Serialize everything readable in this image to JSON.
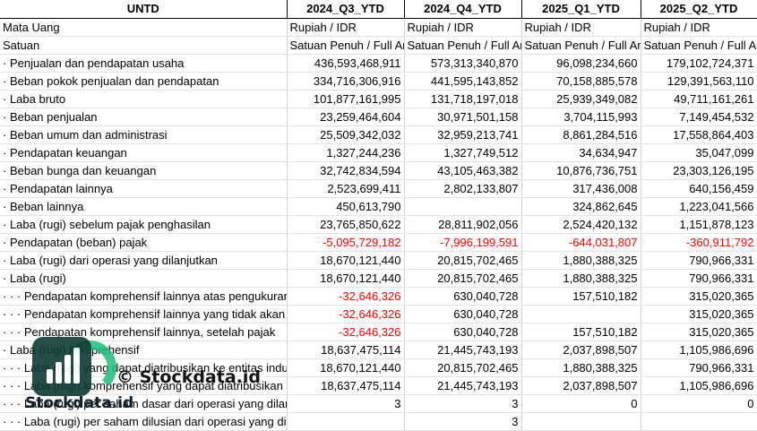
{
  "header": [
    "UNTD",
    "2024_Q3_YTD",
    "2024_Q4_YTD",
    "2025_Q1_YTD",
    "2025_Q2_YTD"
  ],
  "rows": [
    {
      "label": "Mata Uang",
      "cells": [
        "Rupiah / IDR",
        "Rupiah / IDR",
        "Rupiah / IDR",
        "Rupiah / IDR"
      ],
      "kind": "text"
    },
    {
      "label": "Satuan",
      "cells": [
        "Satuan Penuh / Full Amount",
        "Satuan Penuh / Full Amount",
        "Satuan Penuh / Full Amount",
        "Satuan Penuh / Full Amount"
      ],
      "kind": "text"
    },
    {
      "label": "· Penjualan dan pendapatan usaha",
      "cells": [
        "436,593,468,911",
        "573,313,340,870",
        "96,098,234,660",
        "179,102,724,371"
      ]
    },
    {
      "label": "· Beban pokok penjualan dan pendapatan",
      "cells": [
        "334,716,306,916",
        "441,595,143,852",
        "70,158,885,578",
        "129,391,563,110"
      ]
    },
    {
      "label": "· Laba bruto",
      "cells": [
        "101,877,161,995",
        "131,718,197,018",
        "25,939,349,082",
        "49,711,161,261"
      ]
    },
    {
      "label": "· Beban penjualan",
      "cells": [
        "23,259,464,604",
        "30,971,501,158",
        "3,704,115,993",
        "7,149,454,532"
      ]
    },
    {
      "label": "· Beban umum dan administrasi",
      "cells": [
        "25,509,342,032",
        "32,959,213,741",
        "8,861,284,516",
        "17,558,864,403"
      ]
    },
    {
      "label": "· Pendapatan keuangan",
      "cells": [
        "1,327,244,236",
        "1,327,749,512",
        "34,634,947",
        "35,047,099"
      ]
    },
    {
      "label": "· Beban bunga dan keuangan",
      "cells": [
        "32,742,834,594",
        "43,105,463,382",
        "10,876,736,751",
        "23,303,126,195"
      ]
    },
    {
      "label": "· Pendapatan lainnya",
      "cells": [
        "2,523,699,411",
        "2,802,133,807",
        "317,436,008",
        "640,156,459"
      ]
    },
    {
      "label": "· Beban lainnya",
      "cells": [
        "450,613,790",
        "",
        "324,862,645",
        "1,223,041,566"
      ]
    },
    {
      "label": "· Laba (rugi) sebelum pajak penghasilan",
      "cells": [
        "23,765,850,622",
        "28,811,902,056",
        "2,524,420,132",
        "1,151,878,123"
      ]
    },
    {
      "label": "· Pendapatan (beban) pajak",
      "cells": [
        "-5,095,729,182",
        "-7,996,199,591",
        "-644,031,807",
        "-360,911,792"
      ],
      "neg": true
    },
    {
      "label": "· Laba (rugi) dari operasi yang dilanjutkan",
      "cells": [
        "18,670,121,440",
        "20,815,702,465",
        "1,880,388,325",
        "790,966,331"
      ]
    },
    {
      "label": "· Laba (rugi)",
      "cells": [
        "18,670,121,440",
        "20,815,702,465",
        "1,880,388,325",
        "790,966,331"
      ]
    },
    {
      "label": "· · · Pendapatan komprehensif lainnya atas pengukuran kembali",
      "cells": [
        "-32,646,326",
        "630,040,728",
        "157,510,182",
        "315,020,365"
      ],
      "negFirst": true
    },
    {
      "label": "· · · Pendapatan komprehensif lainnya yang tidak akan direklasifikasi",
      "cells": [
        "-32,646,326",
        "630,040,728",
        "",
        "315,020,365"
      ],
      "negFirst": true
    },
    {
      "label": "· · · Pendapatan komprehensif lainnya, setelah pajak",
      "cells": [
        "-32,646,326",
        "630,040,728",
        "157,510,182",
        "315,020,365"
      ],
      "negFirst": true
    },
    {
      "label": "· Laba (rugi) komprehensif",
      "cells": [
        "18,637,475,114",
        "21,445,743,193",
        "2,037,898,507",
        "1,105,986,696"
      ]
    },
    {
      "label": "· · · Laba (rugi) yang dapat diatribusikan ke entitas induk",
      "cells": [
        "18,670,121,440",
        "20,815,702,465",
        "1,880,388,325",
        "790,966,331"
      ]
    },
    {
      "label": "· · · Laba (rugi) komprehensif yang dapat diatribusikan",
      "cells": [
        "18,637,475,114",
        "21,445,743,193",
        "2,037,898,507",
        "1,105,986,696"
      ]
    },
    {
      "label": "· · · Laba (rugi) per saham dasar dari operasi yang dilanjutkan",
      "cells": [
        "3",
        "3",
        "0",
        "0"
      ]
    },
    {
      "label": "· · · Laba (rugi) per saham dilusian dari operasi yang dilanjutkan",
      "cells": [
        "",
        "3",
        "",
        ""
      ]
    }
  ],
  "watermark": {
    "brand": "Stockdata.id",
    "center_text": "© Stockdata.id",
    "logo_color": "#0f3b35",
    "accent_color": "#1dbf7a"
  }
}
